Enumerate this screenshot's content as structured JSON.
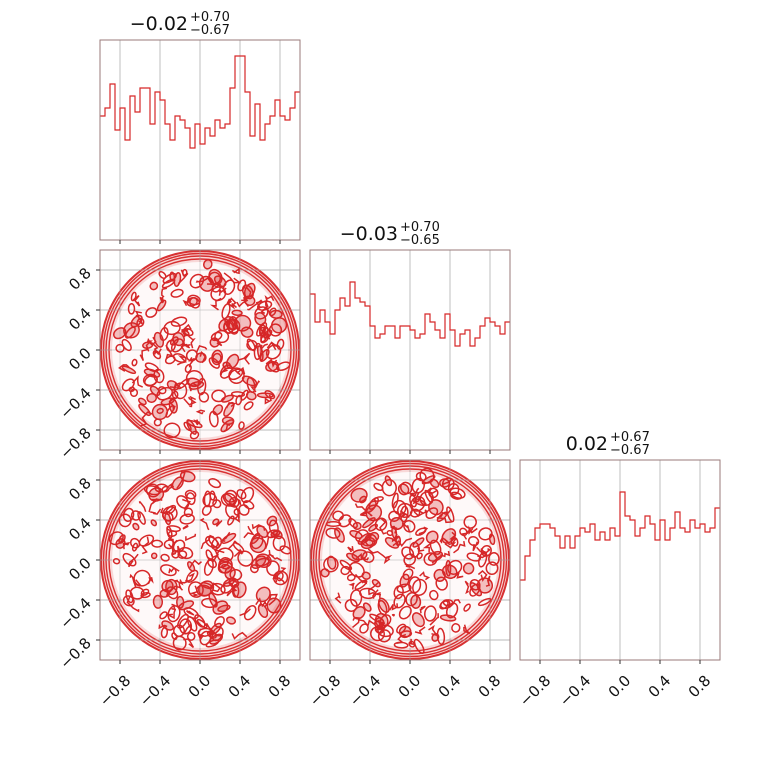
{
  "chart_data": {
    "type": "corner",
    "dimensions": 3,
    "axis_range": [
      -1,
      1
    ],
    "ticks": [
      -0.8,
      -0.4,
      0.0,
      0.4,
      0.8
    ],
    "tick_labels": [
      "−0.8",
      "−0.4",
      "0.0",
      "0.4",
      "0.8"
    ],
    "grid": true,
    "color": "#d62728",
    "titles": [
      {
        "median": "−0.02",
        "plus": "+0.70",
        "minus": "−0.67"
      },
      {
        "median": "−0.03",
        "plus": "+0.70",
        "minus": "−0.65"
      },
      {
        "median": "0.02",
        "plus": "+0.67",
        "minus": "−0.67"
      }
    ],
    "histograms": [
      {
        "bins": 40,
        "counts": [
          0.62,
          0.66,
          0.78,
          0.55,
          0.66,
          0.5,
          0.72,
          0.64,
          0.76,
          0.76,
          0.58,
          0.74,
          0.7,
          0.58,
          0.5,
          0.62,
          0.6,
          0.56,
          0.46,
          0.58,
          0.48,
          0.56,
          0.52,
          0.6,
          0.56,
          0.58,
          0.76,
          0.92,
          0.92,
          0.74,
          0.52,
          0.68,
          0.5,
          0.58,
          0.62,
          0.7,
          0.62,
          0.6,
          0.66,
          0.74
        ]
      },
      {
        "bins": 40,
        "counts": [
          0.78,
          0.64,
          0.7,
          0.64,
          0.58,
          0.7,
          0.76,
          0.72,
          0.84,
          0.76,
          0.74,
          0.72,
          0.62,
          0.56,
          0.58,
          0.62,
          0.62,
          0.56,
          0.62,
          0.62,
          0.6,
          0.56,
          0.58,
          0.68,
          0.64,
          0.6,
          0.56,
          0.68,
          0.6,
          0.52,
          0.58,
          0.6,
          0.52,
          0.56,
          0.62,
          0.66,
          0.64,
          0.62,
          0.58,
          0.64
        ]
      },
      {
        "bins": 40,
        "counts": [
          0.4,
          0.52,
          0.6,
          0.66,
          0.68,
          0.68,
          0.66,
          0.62,
          0.56,
          0.62,
          0.56,
          0.62,
          0.66,
          0.64,
          0.68,
          0.6,
          0.64,
          0.6,
          0.66,
          0.62,
          0.84,
          0.72,
          0.7,
          0.62,
          0.66,
          0.72,
          0.68,
          0.6,
          0.7,
          0.6,
          0.66,
          0.74,
          0.66,
          0.64,
          0.7,
          0.66,
          0.68,
          0.64,
          0.66,
          0.76
        ]
      }
    ],
    "contour_panels": [
      {
        "x_dim": 0,
        "y_dim": 1,
        "shape": "uniform disk, radius 1"
      },
      {
        "x_dim": 0,
        "y_dim": 2,
        "shape": "uniform disk, radius 1"
      },
      {
        "x_dim": 1,
        "y_dim": 2,
        "shape": "uniform disk, radius 1"
      }
    ]
  }
}
